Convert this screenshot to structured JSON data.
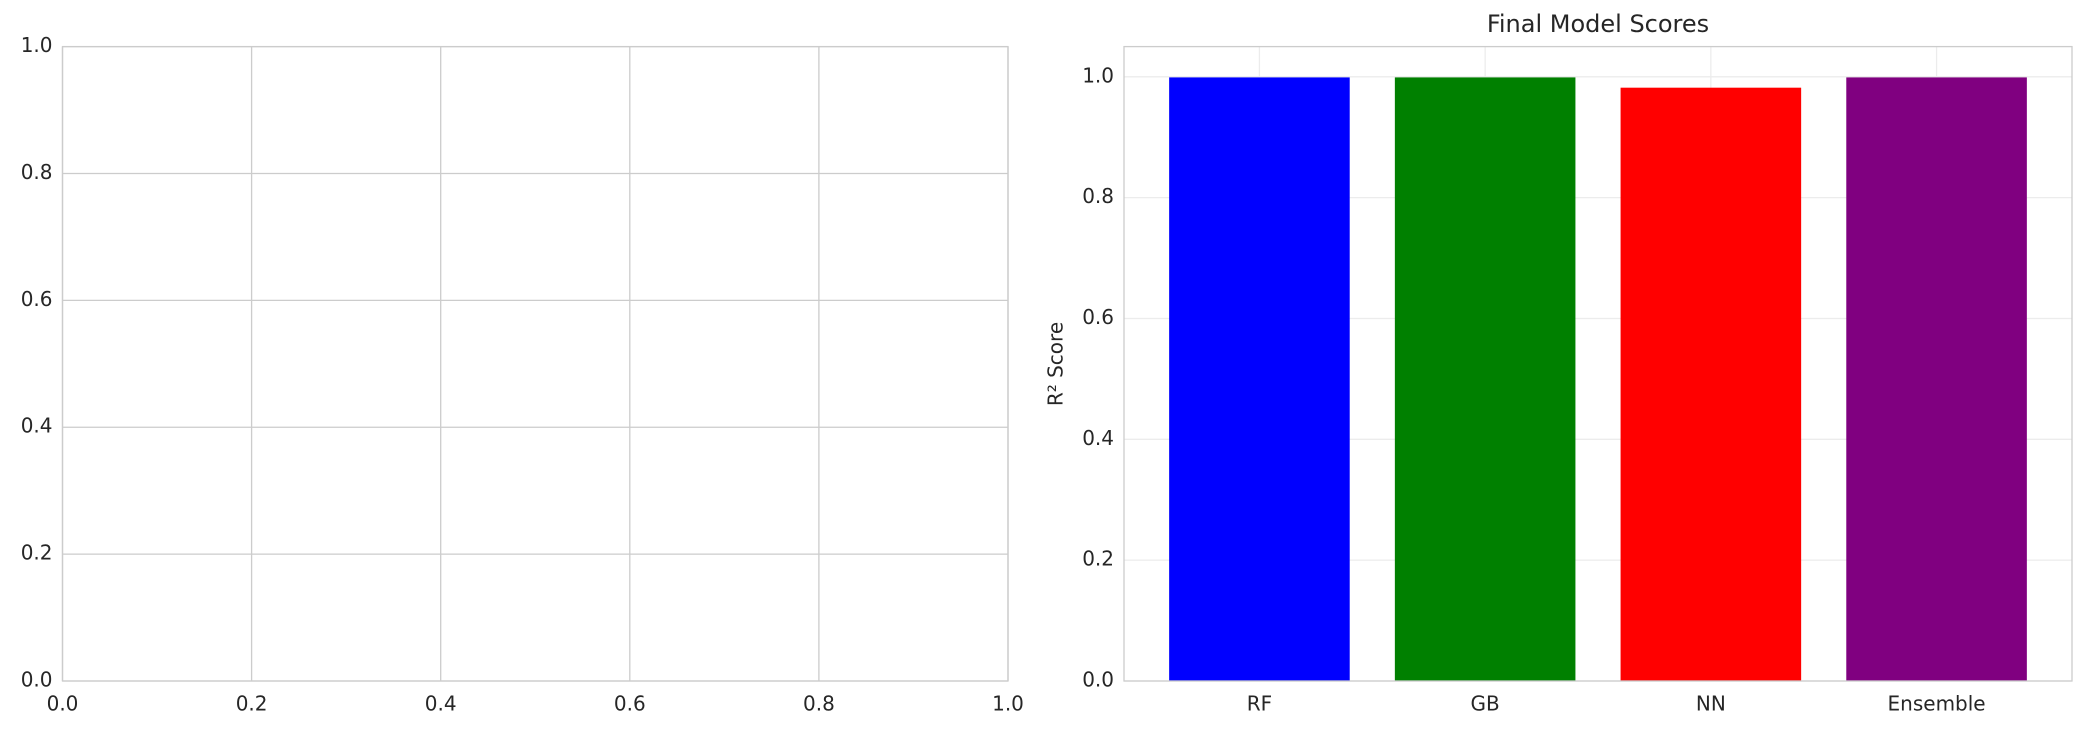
{
  "chart_data": [
    {
      "type": "line",
      "xlim": [
        0,
        1
      ],
      "ylim": [
        0,
        1
      ],
      "xticks": [
        {
          "value": 0,
          "label": "0.0"
        },
        {
          "value": 0.2,
          "label": "0.2"
        },
        {
          "value": 0.4,
          "label": "0.4"
        },
        {
          "value": 0.6,
          "label": "0.6"
        },
        {
          "value": 0.8,
          "label": "0.8"
        },
        {
          "value": 1,
          "label": "1.0"
        }
      ],
      "yticks": [
        {
          "value": 0,
          "label": "0.0"
        },
        {
          "value": 0.2,
          "label": "0.2"
        },
        {
          "value": 0.4,
          "label": "0.4"
        },
        {
          "value": 0.6,
          "label": "0.6"
        },
        {
          "value": 0.8,
          "label": "0.8"
        },
        {
          "value": 1,
          "label": "1.0"
        }
      ],
      "grid": true
    },
    {
      "type": "bar",
      "title": "Final Model Scores",
      "y_label": "R² Score",
      "categories": [
        "RF",
        "GB",
        "NN",
        "Ensemble"
      ],
      "values": [
        0.999,
        0.999,
        0.982,
        0.999
      ],
      "colors": [
        "#0000ff",
        "#008000",
        "#ff0000",
        "#800080"
      ],
      "ylim": [
        0,
        1.05
      ],
      "yticks": [
        {
          "value": 0,
          "label": "0.0"
        },
        {
          "value": 0.2,
          "label": "0.2"
        },
        {
          "value": 0.4,
          "label": "0.4"
        },
        {
          "value": 0.6,
          "label": "0.6"
        },
        {
          "value": 0.8,
          "label": "0.8"
        },
        {
          "value": 1,
          "label": "1.0"
        }
      ],
      "grid": true
    }
  ]
}
